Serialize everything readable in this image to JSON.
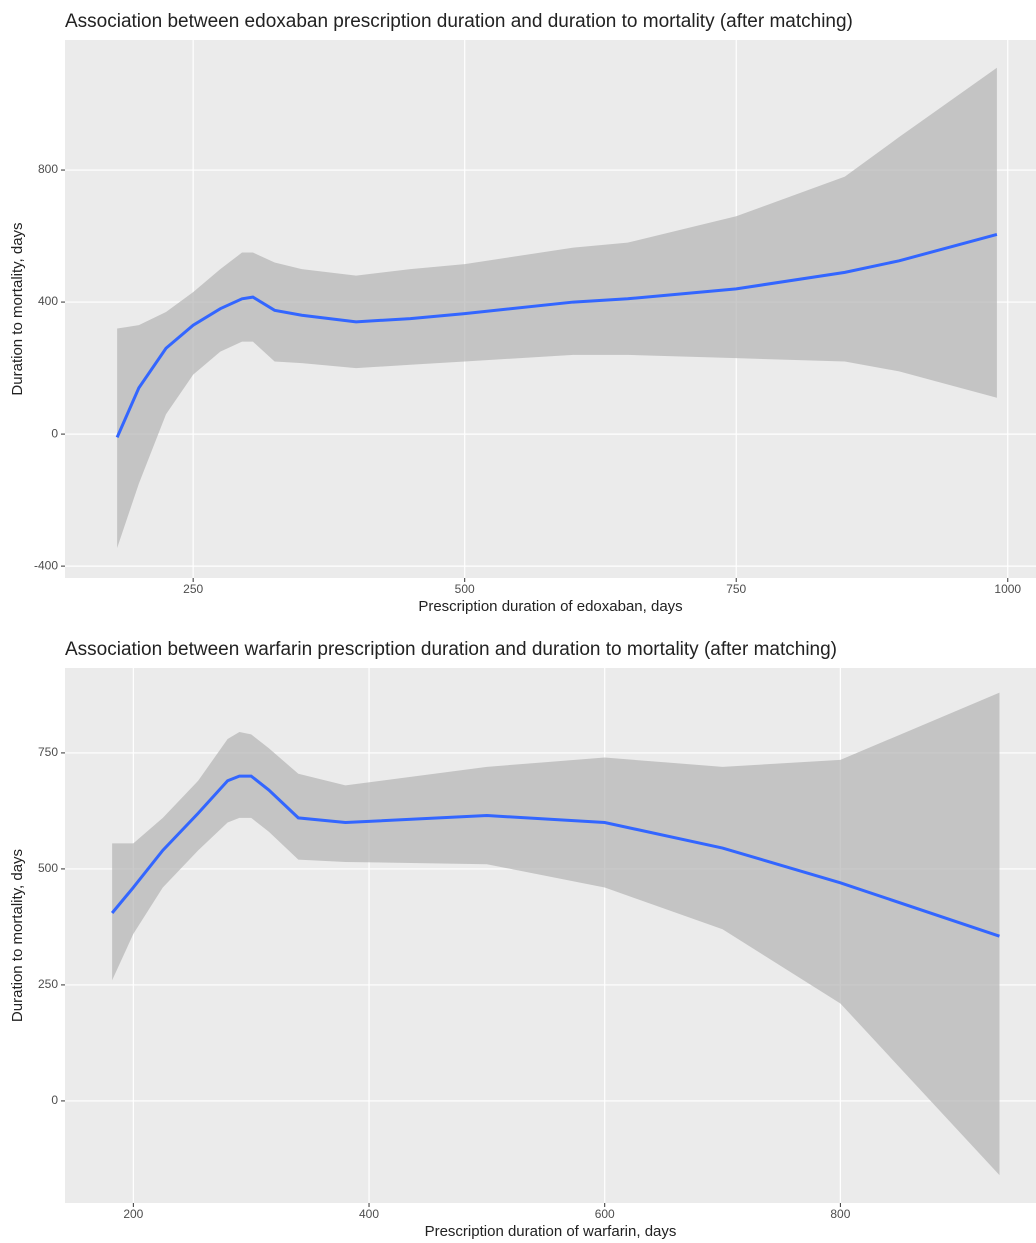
{
  "chart_data": [
    {
      "type": "line",
      "title": "Association between edoxaban prescription duration and duration to mortality (after matching)",
      "x_label": "Prescription duration of edoxaban, days",
      "y_label": "Duration to mortality, days",
      "x": [
        180,
        200,
        225,
        250,
        275,
        295,
        305,
        325,
        350,
        400,
        450,
        500,
        600,
        650,
        750,
        850,
        900,
        990
      ],
      "values": [
        -10,
        140,
        260,
        330,
        380,
        410,
        415,
        375,
        360,
        340,
        350,
        365,
        400,
        410,
        440,
        490,
        525,
        605
      ],
      "ci_lower": [
        -345,
        -150,
        60,
        180,
        250,
        280,
        280,
        220,
        215,
        200,
        210,
        220,
        240,
        240,
        230,
        220,
        190,
        110
      ],
      "ci_upper": [
        320,
        330,
        370,
        430,
        500,
        550,
        550,
        520,
        500,
        480,
        500,
        515,
        565,
        580,
        660,
        780,
        900,
        1110
      ],
      "color": "#3366ff",
      "band_color": "#b3b3b3",
      "xlim": [
        132,
        1026
      ],
      "xticks": [
        250,
        500,
        750,
        1000
      ],
      "ylim": [
        -436,
        1194
      ],
      "yticks": [
        -400,
        0,
        400,
        800
      ],
      "grid": true
    },
    {
      "type": "line",
      "title": "Association between warfarin prescription duration and duration to mortality (after matching)",
      "x_label": "Prescription duration of warfarin, days",
      "y_label": "Duration to mortality, days",
      "x": [
        182,
        200,
        225,
        255,
        280,
        290,
        300,
        315,
        340,
        380,
        500,
        600,
        700,
        800,
        935
      ],
      "values": [
        405,
        460,
        540,
        620,
        690,
        700,
        700,
        670,
        610,
        600,
        615,
        600,
        545,
        470,
        355
      ],
      "ci_lower": [
        260,
        360,
        460,
        540,
        600,
        610,
        610,
        580,
        520,
        515,
        510,
        460,
        370,
        210,
        -160
      ],
      "ci_upper": [
        555,
        555,
        610,
        690,
        780,
        795,
        790,
        760,
        705,
        680,
        720,
        740,
        720,
        735,
        880
      ],
      "color": "#3366ff",
      "band_color": "#b3b3b3",
      "xlim": [
        142,
        966
      ],
      "xticks": [
        200,
        400,
        600,
        800
      ],
      "ylim": [
        -220,
        933
      ],
      "yticks": [
        0,
        250,
        500,
        750
      ],
      "grid": true
    }
  ]
}
